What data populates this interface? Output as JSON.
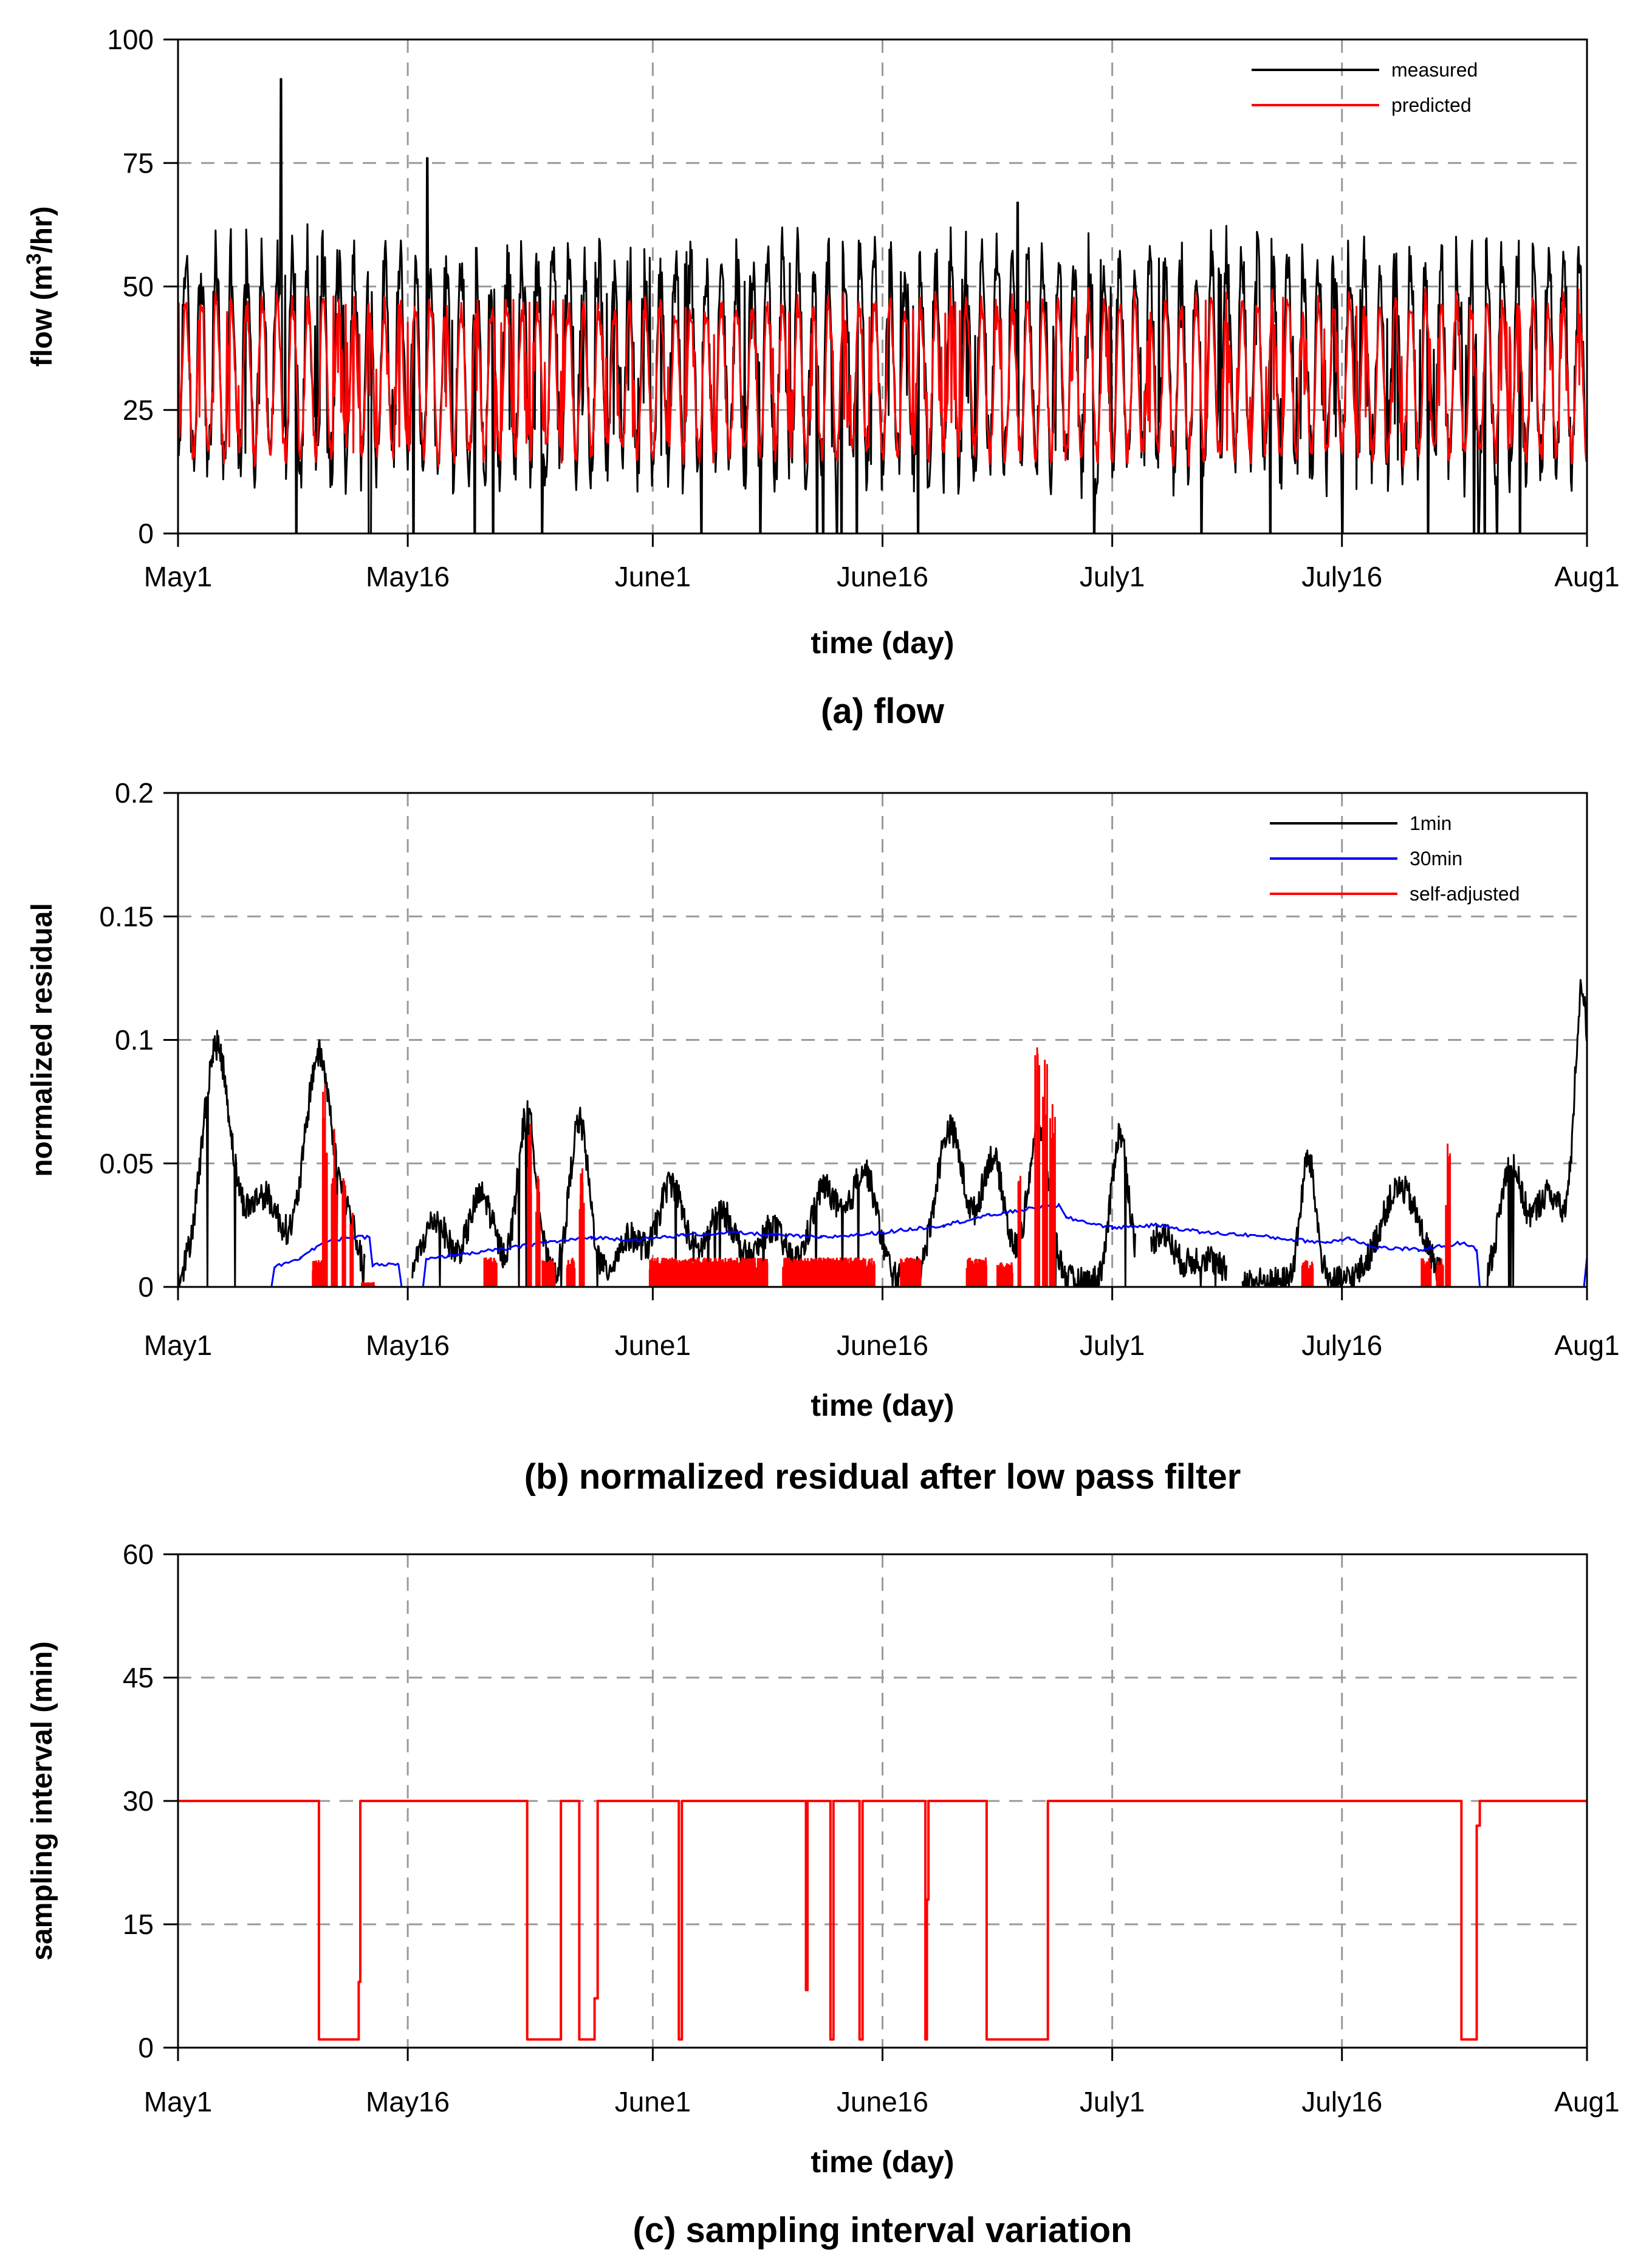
{
  "colors": {
    "black": "#000000",
    "red": "#ff0000",
    "blue": "#0000ff",
    "grid": "#9a9a9a"
  },
  "chart_data": [
    {
      "id": "a",
      "type": "line",
      "title": "(a) flow",
      "xlabel": "time (day)",
      "ylabel_main": "flow (m",
      "ylabel_sup": "3",
      "ylabel_tail": "/hr)",
      "ylim": [
        0,
        100
      ],
      "yticks": [
        0,
        25,
        50,
        75,
        100
      ],
      "ytick_labels": [
        "0",
        "25",
        "50",
        "75",
        "100"
      ],
      "xlim": [
        0,
        92
      ],
      "xticks": [
        0,
        15,
        31,
        46,
        61,
        76,
        92
      ],
      "xtick_labels": [
        "May1",
        "May16",
        "June1",
        "June16",
        "July1",
        "July16",
        "Aug1"
      ],
      "grid": true,
      "legend_position": "top-right",
      "legend": [
        {
          "label": "measured",
          "color": "#000000"
        },
        {
          "label": "predicted",
          "color": "#ff0000"
        }
      ],
      "series": [
        {
          "name": "measured",
          "color": "#000000",
          "pattern": "daily",
          "low": 14,
          "high": 57,
          "noise": 7,
          "spikes": [
            [
              6.7,
              92
            ],
            [
              16.3,
              76
            ],
            [
              54.8,
              67
            ]
          ],
          "drops": [
            7.7,
            12.5,
            12.6,
            15.4,
            19.4,
            20.6,
            23.8,
            34.2,
            38.0,
            41.7,
            42.1,
            43.0,
            43.3,
            44.3,
            48.3,
            59.8,
            66.8,
            71.3,
            76.0,
            81.6,
            84.6,
            84.9,
            85.3,
            86.1,
            87.6
          ]
        },
        {
          "name": "predicted",
          "color": "#ff0000",
          "pattern": "daily",
          "low": 16,
          "high": 48,
          "noise": 2.5
        }
      ]
    },
    {
      "id": "b",
      "type": "line",
      "title": "(b) normalized residual after low pass filter",
      "xlabel": "time (day)",
      "ylabel_main": "normalized residual",
      "ylim": [
        0,
        0.2
      ],
      "yticks": [
        0,
        0.05,
        0.1,
        0.15,
        0.2
      ],
      "ytick_labels": [
        "0",
        "0.05",
        "0.1",
        "0.15",
        "0.2"
      ],
      "xlim": [
        0,
        92
      ],
      "xticks": [
        0,
        15,
        31,
        46,
        61,
        76,
        92
      ],
      "xtick_labels": [
        "May1",
        "May16",
        "June1",
        "June16",
        "July1",
        "July16",
        "Aug1"
      ],
      "grid": true,
      "legend_position": "top-right",
      "legend": [
        {
          "label": "1min",
          "color": "#000000"
        },
        {
          "label": "30min",
          "color": "#0000ff"
        },
        {
          "label": "self-adjusted",
          "color": "#ff0000"
        }
      ],
      "series": [
        {
          "name": "1min",
          "color": "#000000",
          "pattern": "bumps",
          "noise": 0.006,
          "segments": [
            [
              0,
              12.2
            ],
            [
              15.3,
              62.5
            ],
            [
              63.5,
              68.5
            ],
            [
              69.5,
              82.5
            ],
            [
              85.5,
              92
            ]
          ],
          "bumps": [
            {
              "c": 2.5,
              "a": 0.095,
              "w": 1.3
            },
            {
              "c": 5.6,
              "a": 0.035,
              "w": 1.6
            },
            {
              "c": 9.2,
              "a": 0.092,
              "w": 1.3
            },
            {
              "c": 11.2,
              "a": 0.02,
              "w": 0.8
            },
            {
              "c": 16.8,
              "a": 0.025,
              "w": 1.2
            },
            {
              "c": 19.8,
              "a": 0.035,
              "w": 1.2
            },
            {
              "c": 22.8,
              "a": 0.068,
              "w": 0.9
            },
            {
              "c": 26.2,
              "a": 0.065,
              "w": 0.9
            },
            {
              "c": 29.5,
              "a": 0.018,
              "w": 1.2
            },
            {
              "c": 32.2,
              "a": 0.04,
              "w": 1.2
            },
            {
              "c": 35.5,
              "a": 0.028,
              "w": 1.4
            },
            {
              "c": 38.8,
              "a": 0.022,
              "w": 1.2
            },
            {
              "c": 42.2,
              "a": 0.038,
              "w": 1.3
            },
            {
              "c": 44.8,
              "a": 0.045,
              "w": 1.2
            },
            {
              "c": 50.4,
              "a": 0.062,
              "w": 1.3
            },
            {
              "c": 53.2,
              "a": 0.05,
              "w": 1.1
            },
            {
              "c": 56.2,
              "a": 0.062,
              "w": 1.0
            },
            {
              "c": 61.5,
              "a": 0.06,
              "w": 0.8
            },
            {
              "c": 64.2,
              "a": 0.02,
              "w": 1.1
            },
            {
              "c": 67.0,
              "a": 0.01,
              "w": 1.5
            },
            {
              "c": 73.8,
              "a": 0.05,
              "w": 0.7
            },
            {
              "c": 79.8,
              "a": 0.038,
              "w": 1.8
            },
            {
              "c": 87.0,
              "a": 0.046,
              "w": 1.0
            },
            {
              "c": 89.5,
              "a": 0.036,
              "w": 1.5
            },
            {
              "c": 91.7,
              "a": 0.115,
              "w": 0.7
            }
          ]
        },
        {
          "name": "30min",
          "color": "#0000ff",
          "pattern": "steps",
          "points": [
            [
              0,
              0
            ],
            [
              6.1,
              0
            ],
            [
              6.3,
              0.008
            ],
            [
              8.0,
              0.012
            ],
            [
              9.5,
              0.018
            ],
            [
              11.0,
              0.02
            ],
            [
              12.5,
              0.02
            ],
            [
              12.7,
              0.009
            ],
            [
              14.4,
              0.009
            ],
            [
              14.6,
              0
            ],
            [
              16.0,
              0
            ],
            [
              16.2,
              0.011
            ],
            [
              18.0,
              0.013
            ],
            [
              21.0,
              0.015
            ],
            [
              24.0,
              0.018
            ],
            [
              27.0,
              0.02
            ],
            [
              30.0,
              0.019
            ],
            [
              33.0,
              0.021
            ],
            [
              36.0,
              0.022
            ],
            [
              39.0,
              0.021
            ],
            [
              42.0,
              0.02
            ],
            [
              46.0,
              0.022
            ],
            [
              50.0,
              0.025
            ],
            [
              53.0,
              0.029
            ],
            [
              56.0,
              0.032
            ],
            [
              57.5,
              0.033
            ],
            [
              58.0,
              0.028
            ],
            [
              61.0,
              0.024
            ],
            [
              64.0,
              0.025
            ],
            [
              67.0,
              0.022
            ],
            [
              70.0,
              0.021
            ],
            [
              73.0,
              0.019
            ],
            [
              75.0,
              0.018
            ],
            [
              76.5,
              0.02
            ],
            [
              78.0,
              0.016
            ],
            [
              81.0,
              0.015
            ],
            [
              84.0,
              0.018
            ],
            [
              84.8,
              0.015
            ],
            [
              85.0,
              0
            ],
            [
              91.8,
              0
            ],
            [
              92.0,
              0.012
            ]
          ]
        },
        {
          "name": "self-adjusted",
          "color": "#ff0000",
          "pattern": "bursts",
          "blocks": [
            [
              8.8,
              9.4,
              0.011
            ],
            [
              12.0,
              12.8,
              0.002
            ],
            [
              20.0,
              20.8,
              0.012
            ],
            [
              23.8,
              24.6,
              0.011
            ],
            [
              25.4,
              25.9,
              0.012
            ],
            [
              30.8,
              38.5,
              0.012
            ],
            [
              39.5,
              45.5,
              0.012
            ],
            [
              47.2,
              48.5,
              0.012
            ],
            [
              51.5,
              52.8,
              0.012
            ],
            [
              53.5,
              54.5,
              0.01
            ],
            [
              73.4,
              74.1,
              0.011
            ],
            [
              81.2,
              81.8,
              0.012
            ],
            [
              82.2,
              82.6,
              0.012
            ]
          ],
          "peaks": [
            [
              9.6,
              0.082
            ],
            [
              10.2,
              0.064
            ],
            [
              10.8,
              0.044
            ],
            [
              11.4,
              0.03
            ],
            [
              23.0,
              0.066
            ],
            [
              23.5,
              0.045
            ],
            [
              26.4,
              0.048
            ],
            [
              55.0,
              0.045
            ],
            [
              56.1,
              0.097
            ],
            [
              56.6,
              0.092
            ],
            [
              57.1,
              0.074
            ],
            [
              82.9,
              0.058
            ]
          ]
        }
      ]
    },
    {
      "id": "c",
      "type": "line",
      "title": "(c) sampling interval variation",
      "xlabel": "time (day)",
      "ylabel_main": "sampling interval (min)",
      "ylim": [
        0,
        60
      ],
      "yticks": [
        0,
        15,
        30,
        45,
        60
      ],
      "ytick_labels": [
        "0",
        "15",
        "30",
        "45",
        "60"
      ],
      "xlim": [
        0,
        92
      ],
      "xticks": [
        0,
        15,
        31,
        46,
        61,
        76,
        92
      ],
      "xtick_labels": [
        "May1",
        "May16",
        "June1",
        "June16",
        "July1",
        "July16",
        "Aug1"
      ],
      "grid": true,
      "series": [
        {
          "name": "sampling interval",
          "color": "#ff0000",
          "pattern": "path",
          "points": [
            [
              0,
              30
            ],
            [
              9.2,
              30
            ],
            [
              9.2,
              1
            ],
            [
              11.8,
              1
            ],
            [
              11.8,
              8
            ],
            [
              11.9,
              8
            ],
            [
              11.9,
              30
            ],
            [
              22.8,
              30
            ],
            [
              22.8,
              1
            ],
            [
              25.0,
              1
            ],
            [
              25.0,
              30
            ],
            [
              26.2,
              30
            ],
            [
              26.2,
              1
            ],
            [
              27.2,
              1
            ],
            [
              27.2,
              6
            ],
            [
              27.4,
              6
            ],
            [
              27.4,
              30
            ],
            [
              32.7,
              30
            ],
            [
              32.7,
              1
            ],
            [
              32.9,
              1
            ],
            [
              32.9,
              30
            ],
            [
              41.0,
              30
            ],
            [
              41.0,
              7
            ],
            [
              41.1,
              7
            ],
            [
              41.1,
              30
            ],
            [
              42.6,
              30
            ],
            [
              42.6,
              1
            ],
            [
              42.8,
              1
            ],
            [
              42.8,
              30
            ],
            [
              44.5,
              30
            ],
            [
              44.5,
              1
            ],
            [
              44.7,
              1
            ],
            [
              44.7,
              30
            ],
            [
              48.8,
              30
            ],
            [
              48.8,
              1
            ],
            [
              48.9,
              1
            ],
            [
              48.9,
              18
            ],
            [
              49.0,
              18
            ],
            [
              49.0,
              30
            ],
            [
              52.8,
              30
            ],
            [
              52.8,
              1
            ],
            [
              56.8,
              1
            ],
            [
              56.8,
              30
            ],
            [
              83.8,
              30
            ],
            [
              83.8,
              1
            ],
            [
              84.8,
              1
            ],
            [
              84.8,
              27
            ],
            [
              85.0,
              27
            ],
            [
              85.0,
              30
            ],
            [
              92,
              30
            ]
          ]
        }
      ]
    }
  ]
}
